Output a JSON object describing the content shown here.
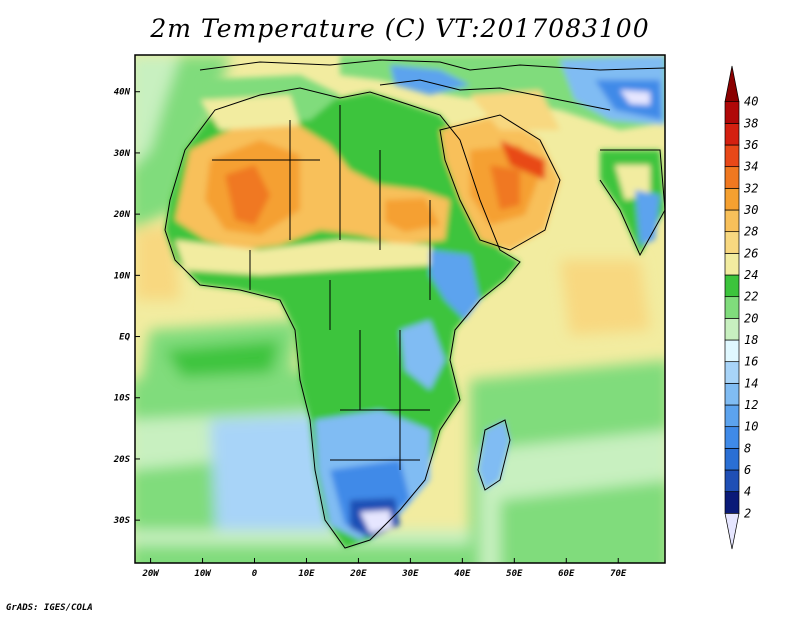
{
  "title": "2m Temperature (C) VT:2017083100",
  "footer": "GrADS: IGES/COLA",
  "map": {
    "lon_range": [
      -23,
      79
    ],
    "lat_range": [
      -37,
      46
    ],
    "lat_labels": [
      {
        "lat": 40,
        "label": "40N"
      },
      {
        "lat": 30,
        "label": "30N"
      },
      {
        "lat": 20,
        "label": "20N"
      },
      {
        "lat": 10,
        "label": "10N"
      },
      {
        "lat": 0,
        "label": "EQ"
      },
      {
        "lat": -10,
        "label": "10S"
      },
      {
        "lat": -20,
        "label": "20S"
      },
      {
        "lat": -30,
        "label": "30S"
      }
    ],
    "lon_labels": [
      {
        "lon": -20,
        "label": "20W"
      },
      {
        "lon": -10,
        "label": "10W"
      },
      {
        "lon": 0,
        "label": "0"
      },
      {
        "lon": 10,
        "label": "10E"
      },
      {
        "lon": 20,
        "label": "20E"
      },
      {
        "lon": 30,
        "label": "30E"
      },
      {
        "lon": 40,
        "label": "40E"
      },
      {
        "lon": 50,
        "label": "50E"
      },
      {
        "lon": 60,
        "label": "60E"
      },
      {
        "lon": 70,
        "label": "70E"
      }
    ]
  },
  "colorbar": {
    "levels": [
      2,
      4,
      6,
      8,
      10,
      12,
      14,
      16,
      18,
      20,
      22,
      24,
      26,
      28,
      30,
      32,
      34,
      36,
      38,
      40
    ],
    "colors": [
      "#e6e6ff",
      "#0a1a78",
      "#1f4fb5",
      "#2a6fd4",
      "#3f8ae8",
      "#5ca3ee",
      "#80bcf3",
      "#a8d4f8",
      "#e0f8ff",
      "#c8f0c0",
      "#80dc7c",
      "#3cc43c",
      "#f2eca0",
      "#f8d880",
      "#f8c05a",
      "#f5a030",
      "#f07820",
      "#e84818",
      "#d42010",
      "#b00808",
      "#8a0000"
    ]
  }
}
